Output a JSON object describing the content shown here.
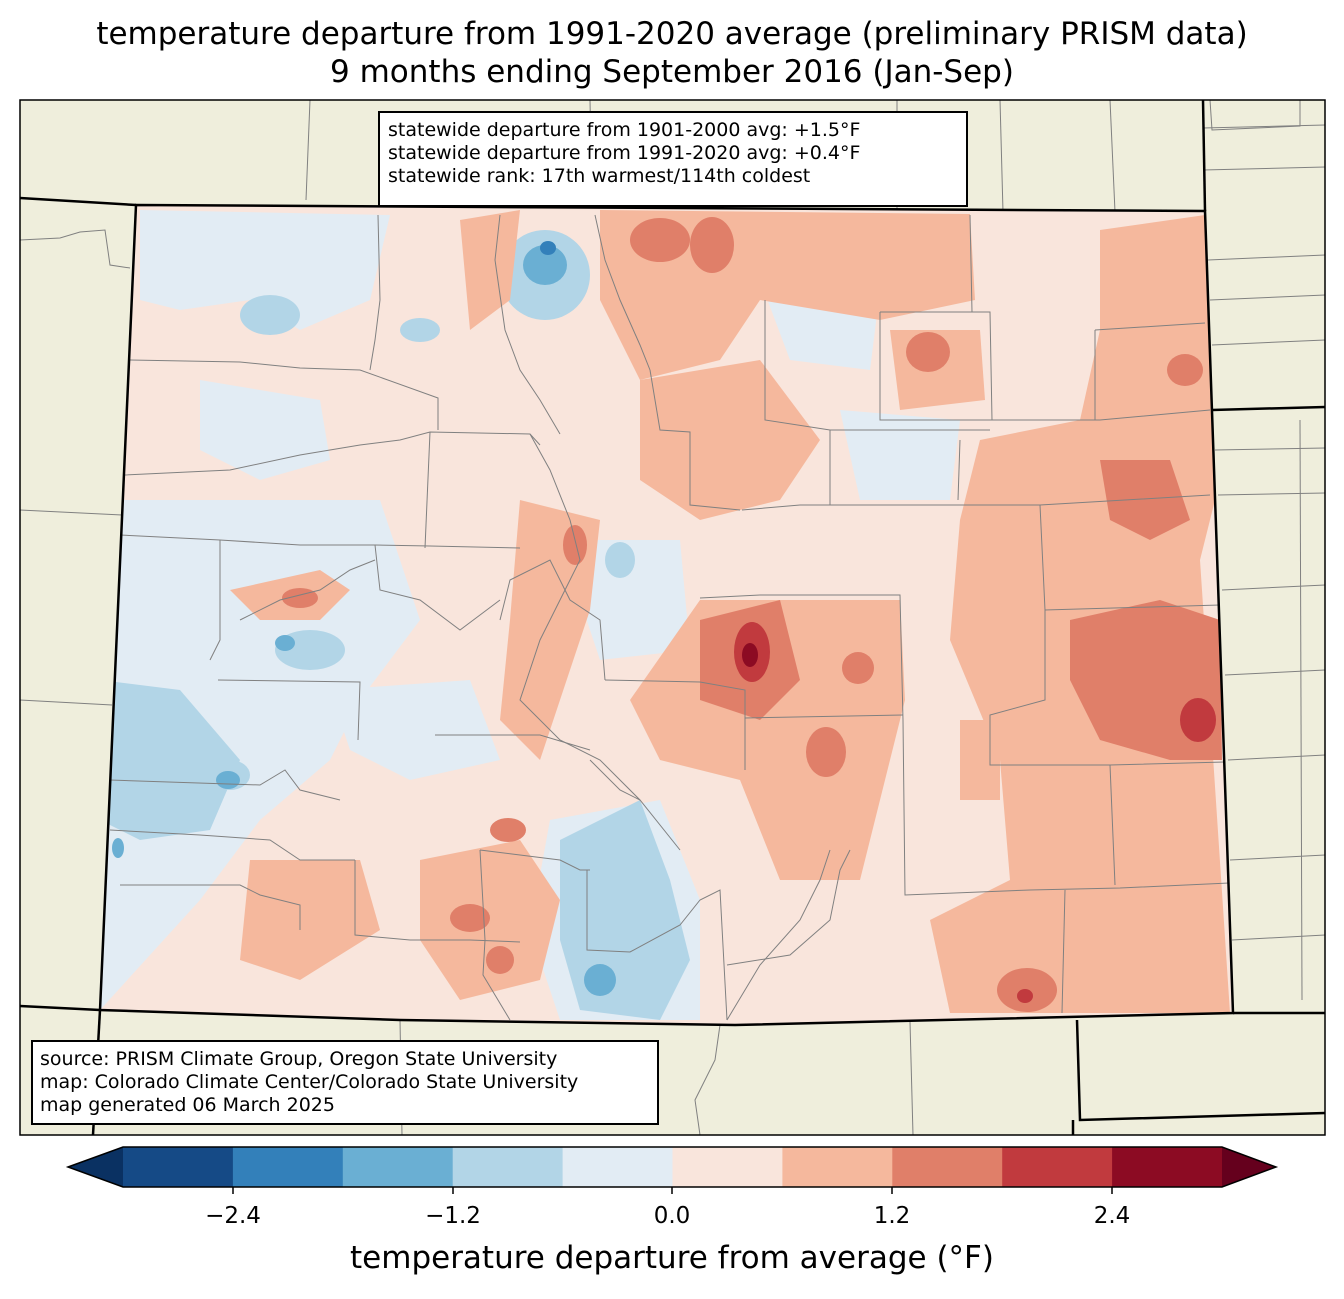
{
  "title": {
    "line1": "temperature departure from 1991-2020 average (preliminary PRISM data)",
    "line2": "9 months ending September 2016 (Jan-Sep)"
  },
  "stats": {
    "line1": "statewide departure from 1901-2000 avg: +1.5°F",
    "line2": "statewide departure from 1991-2020 avg: +0.4°F",
    "line3": "statewide rank: 17th warmest/114th coldest"
  },
  "source": {
    "line1": "source: PRISM Climate Group, Oregon State University",
    "line2": "map: Colorado Climate Center/Colorado State University",
    "line3": "map generated 06 March 2025"
  },
  "colorbar": {
    "label": "temperature departure from average (°F)",
    "ticks": [
      "−2.4",
      "−1.2",
      "0.0",
      "1.2",
      "2.4"
    ],
    "bins": [
      {
        "range": "< -3.0",
        "color": "#0a3162"
      },
      {
        "range": "-3.0 to -2.4",
        "color": "#154a86"
      },
      {
        "range": "-2.4 to -1.8",
        "color": "#3380ba"
      },
      {
        "range": "-1.8 to -1.2",
        "color": "#6aafd3"
      },
      {
        "range": "-1.2 to -0.6",
        "color": "#b2d5e7"
      },
      {
        "range": "-0.6 to 0.0",
        "color": "#e2ecf4"
      },
      {
        "range": "0.0 to 0.6",
        "color": "#f9e5dc"
      },
      {
        "range": "0.6 to 1.2",
        "color": "#f5b89d"
      },
      {
        "range": "1.2 to 1.8",
        "color": "#e07f69"
      },
      {
        "range": "1.8 to 2.4",
        "color": "#c13a3e"
      },
      {
        "range": "2.4 to 3.0",
        "color": "#8c0b23"
      },
      {
        "range": "> 3.0",
        "color": "#65001d"
      }
    ]
  },
  "colors": {
    "land_background": "#efeedc",
    "county_line": "#808080",
    "state_line": "#000000"
  }
}
